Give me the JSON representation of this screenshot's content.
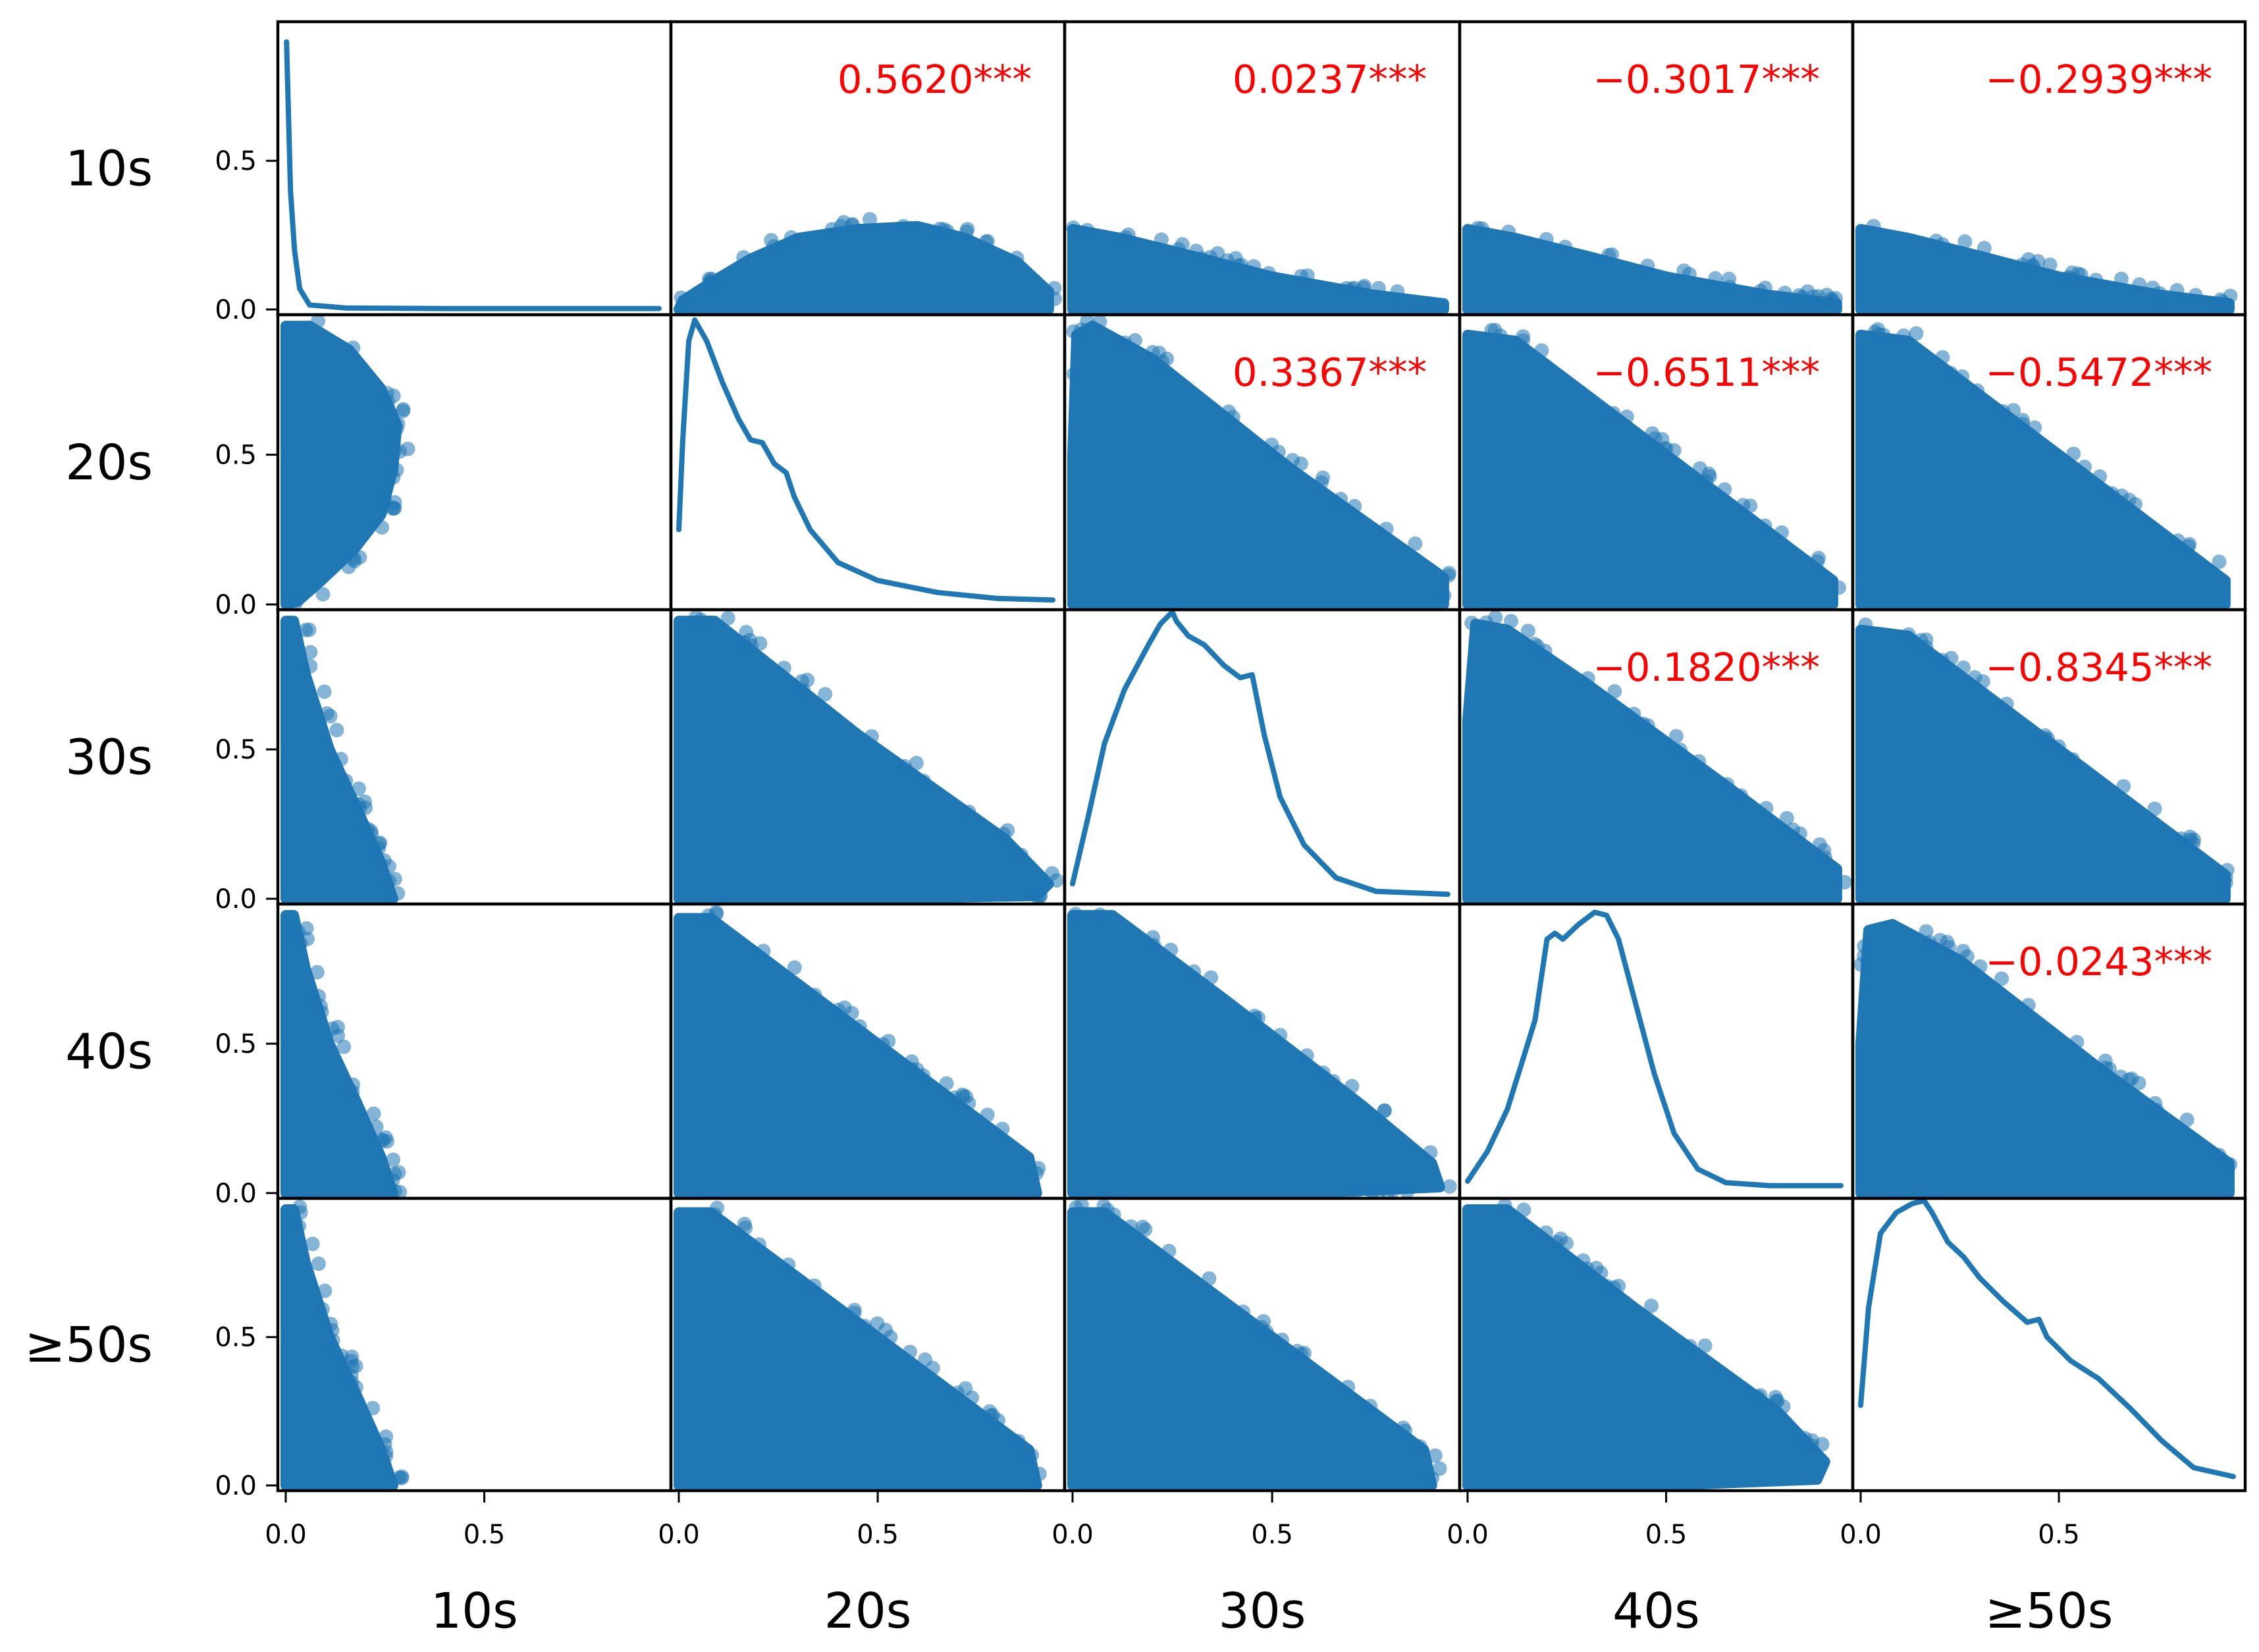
{
  "chart_data": {
    "type": "scatter",
    "title": "",
    "variables": [
      "10s",
      "20s",
      "30s",
      "40s",
      "≥50s"
    ],
    "axis_range": [
      0,
      0.95
    ],
    "tick_values": [
      0.0,
      0.5
    ],
    "tick_labels": [
      "0.0",
      "0.5"
    ],
    "colors": {
      "points": "#1f77b4",
      "kde": "#1f77b4",
      "annotation": "#ff0000"
    },
    "correlations": [
      {
        "row": 0,
        "col": 1,
        "label": "0.5620***"
      },
      {
        "row": 0,
        "col": 2,
        "label": "0.0237***"
      },
      {
        "row": 0,
        "col": 3,
        "label": "−0.3017***"
      },
      {
        "row": 0,
        "col": 4,
        "label": "−0.2939***"
      },
      {
        "row": 1,
        "col": 2,
        "label": "0.3367***"
      },
      {
        "row": 1,
        "col": 3,
        "label": "−0.6511***"
      },
      {
        "row": 1,
        "col": 4,
        "label": "−0.5472***"
      },
      {
        "row": 2,
        "col": 3,
        "label": "−0.1820***"
      },
      {
        "row": 2,
        "col": 4,
        "label": "−0.8345***"
      },
      {
        "row": 3,
        "col": 4,
        "label": "−0.0243***"
      }
    ],
    "kde": [
      [
        [
          0.002,
          0.9
        ],
        [
          0.006,
          0.7
        ],
        [
          0.012,
          0.4
        ],
        [
          0.022,
          0.2
        ],
        [
          0.035,
          0.07
        ],
        [
          0.06,
          0.015
        ],
        [
          0.15,
          0.005
        ],
        [
          0.4,
          0.003
        ],
        [
          0.94,
          0.003
        ]
      ],
      [
        [
          0.0,
          0.25
        ],
        [
          0.01,
          0.55
        ],
        [
          0.025,
          0.88
        ],
        [
          0.04,
          0.95
        ],
        [
          0.07,
          0.88
        ],
        [
          0.11,
          0.74
        ],
        [
          0.15,
          0.62
        ],
        [
          0.18,
          0.55
        ],
        [
          0.21,
          0.54
        ],
        [
          0.24,
          0.47
        ],
        [
          0.27,
          0.44
        ],
        [
          0.29,
          0.36
        ],
        [
          0.33,
          0.25
        ],
        [
          0.4,
          0.14
        ],
        [
          0.5,
          0.08
        ],
        [
          0.65,
          0.04
        ],
        [
          0.8,
          0.02
        ],
        [
          0.94,
          0.015
        ]
      ],
      [
        [
          0.0,
          0.05
        ],
        [
          0.04,
          0.28
        ],
        [
          0.08,
          0.52
        ],
        [
          0.13,
          0.7
        ],
        [
          0.19,
          0.85
        ],
        [
          0.22,
          0.92
        ],
        [
          0.25,
          0.96
        ],
        [
          0.26,
          0.93
        ],
        [
          0.29,
          0.88
        ],
        [
          0.33,
          0.85
        ],
        [
          0.38,
          0.78
        ],
        [
          0.42,
          0.74
        ],
        [
          0.45,
          0.75
        ],
        [
          0.48,
          0.55
        ],
        [
          0.52,
          0.34
        ],
        [
          0.58,
          0.18
        ],
        [
          0.66,
          0.07
        ],
        [
          0.76,
          0.025
        ],
        [
          0.94,
          0.015
        ]
      ],
      [
        [
          0.0,
          0.04
        ],
        [
          0.05,
          0.14
        ],
        [
          0.1,
          0.28
        ],
        [
          0.14,
          0.45
        ],
        [
          0.17,
          0.58
        ],
        [
          0.2,
          0.85
        ],
        [
          0.22,
          0.87
        ],
        [
          0.24,
          0.85
        ],
        [
          0.28,
          0.9
        ],
        [
          0.32,
          0.94
        ],
        [
          0.35,
          0.93
        ],
        [
          0.38,
          0.85
        ],
        [
          0.42,
          0.65
        ],
        [
          0.47,
          0.4
        ],
        [
          0.52,
          0.2
        ],
        [
          0.58,
          0.08
        ],
        [
          0.65,
          0.035
        ],
        [
          0.76,
          0.025
        ],
        [
          0.94,
          0.025
        ]
      ],
      [
        [
          0.0,
          0.27
        ],
        [
          0.02,
          0.6
        ],
        [
          0.05,
          0.85
        ],
        [
          0.09,
          0.92
        ],
        [
          0.13,
          0.95
        ],
        [
          0.16,
          0.96
        ],
        [
          0.18,
          0.92
        ],
        [
          0.22,
          0.82
        ],
        [
          0.26,
          0.77
        ],
        [
          0.3,
          0.7
        ],
        [
          0.36,
          0.62
        ],
        [
          0.42,
          0.55
        ],
        [
          0.45,
          0.56
        ],
        [
          0.47,
          0.5
        ],
        [
          0.53,
          0.42
        ],
        [
          0.6,
          0.36
        ],
        [
          0.68,
          0.26
        ],
        [
          0.76,
          0.15
        ],
        [
          0.84,
          0.06
        ],
        [
          0.94,
          0.03
        ]
      ]
    ]
  }
}
